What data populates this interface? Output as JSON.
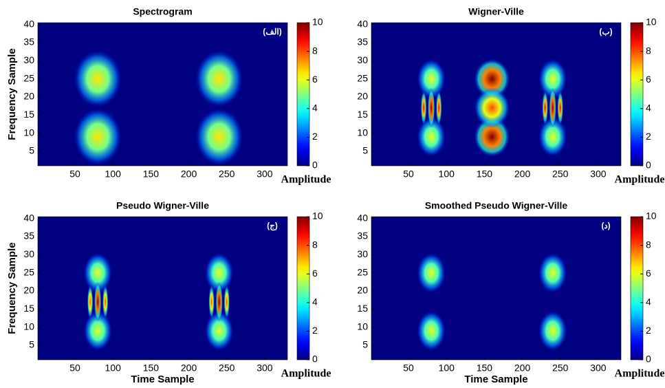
{
  "chart_data": [
    {
      "type": "heatmap",
      "title": "Spectrogram",
      "panel_label": "(الف)",
      "ylabel": "Frequency Sample",
      "colorbar_label": "Amplitude",
      "xlim": [
        1,
        330
      ],
      "xticks": [
        50,
        100,
        150,
        200,
        250,
        300
      ],
      "ylim": [
        1,
        40.5
      ],
      "yticks": [
        5,
        10,
        15,
        20,
        25,
        30,
        35,
        40
      ],
      "clim": [
        0,
        10
      ],
      "cticks": [
        0,
        2,
        4,
        6,
        8,
        10
      ],
      "blobs": [
        {
          "x": 80,
          "y": 25,
          "value": 6.5,
          "width": 40,
          "height": 10
        },
        {
          "x": 240,
          "y": 25,
          "value": 6.5,
          "width": 40,
          "height": 10
        },
        {
          "x": 80,
          "y": 9,
          "value": 6.5,
          "width": 40,
          "height": 10
        },
        {
          "x": 240,
          "y": 9,
          "value": 6.5,
          "width": 40,
          "height": 10
        }
      ]
    },
    {
      "type": "heatmap",
      "title": "Wigner-Ville",
      "panel_label": "(ب)",
      "colorbar_label": "Amplitude",
      "xlim": [
        1,
        330
      ],
      "xticks": [
        50,
        100,
        150,
        200,
        250,
        300
      ],
      "ylim": [
        1,
        40.5
      ],
      "yticks": [
        5,
        10,
        15,
        20,
        25,
        30,
        35,
        40
      ],
      "clim": [
        0,
        10
      ],
      "cticks": [
        0,
        2,
        4,
        6,
        8,
        10
      ],
      "blobs": [
        {
          "x": 80,
          "y": 25,
          "value": 6,
          "width": 24,
          "height": 7
        },
        {
          "x": 240,
          "y": 25,
          "value": 6,
          "width": 24,
          "height": 7
        },
        {
          "x": 80,
          "y": 9,
          "value": 6,
          "width": 24,
          "height": 7
        },
        {
          "x": 240,
          "y": 9,
          "value": 6,
          "width": 24,
          "height": 7
        },
        {
          "x": 80,
          "y": 17,
          "value": 10,
          "width": 6,
          "height": 7
        },
        {
          "x": 70,
          "y": 17,
          "value": 9,
          "width": 5,
          "height": 6
        },
        {
          "x": 90,
          "y": 17,
          "value": 9,
          "width": 5,
          "height": 6
        },
        {
          "x": 240,
          "y": 17,
          "value": 10,
          "width": 6,
          "height": 7
        },
        {
          "x": 230,
          "y": 17,
          "value": 9,
          "width": 5,
          "height": 6
        },
        {
          "x": 250,
          "y": 17,
          "value": 9,
          "width": 5,
          "height": 6
        },
        {
          "x": 160,
          "y": 25,
          "value": 10,
          "width": 30,
          "height": 7
        },
        {
          "x": 160,
          "y": 9,
          "value": 10,
          "width": 30,
          "height": 7
        },
        {
          "x": 160,
          "y": 17,
          "value": 8,
          "width": 30,
          "height": 7
        }
      ]
    },
    {
      "type": "heatmap",
      "title": "Pseudo Wigner-Ville",
      "panel_label": "(ج)",
      "ylabel": "Frequency Sample",
      "xlabel": "Time Sample",
      "colorbar_label": "Amplitude",
      "xlim": [
        1,
        330
      ],
      "xticks": [
        50,
        100,
        150,
        200,
        250,
        300
      ],
      "ylim": [
        1,
        40.5
      ],
      "yticks": [
        5,
        10,
        15,
        20,
        25,
        30,
        35,
        40
      ],
      "clim": [
        0,
        10
      ],
      "cticks": [
        0,
        2,
        4,
        6,
        8,
        10
      ],
      "blobs": [
        {
          "x": 80,
          "y": 25,
          "value": 6,
          "width": 24,
          "height": 7
        },
        {
          "x": 240,
          "y": 25,
          "value": 6,
          "width": 24,
          "height": 7
        },
        {
          "x": 80,
          "y": 9,
          "value": 6,
          "width": 24,
          "height": 7
        },
        {
          "x": 240,
          "y": 9,
          "value": 6,
          "width": 24,
          "height": 7
        },
        {
          "x": 80,
          "y": 17,
          "value": 10,
          "width": 6,
          "height": 7
        },
        {
          "x": 70,
          "y": 17,
          "value": 8,
          "width": 5,
          "height": 6
        },
        {
          "x": 90,
          "y": 17,
          "value": 8,
          "width": 5,
          "height": 6
        },
        {
          "x": 240,
          "y": 17,
          "value": 10,
          "width": 6,
          "height": 7
        },
        {
          "x": 230,
          "y": 17,
          "value": 8,
          "width": 5,
          "height": 6
        },
        {
          "x": 250,
          "y": 17,
          "value": 8,
          "width": 5,
          "height": 6
        }
      ]
    },
    {
      "type": "heatmap",
      "title": "Smoothed Pseudo Wigner-Ville",
      "panel_label": "(د)",
      "xlabel": "Time Sample",
      "colorbar_label": "Amplitude",
      "xlim": [
        1,
        330
      ],
      "xticks": [
        50,
        100,
        150,
        200,
        250,
        300
      ],
      "ylim": [
        1,
        40.5
      ],
      "yticks": [
        5,
        10,
        15,
        20,
        25,
        30,
        35,
        40
      ],
      "clim": [
        0,
        10
      ],
      "cticks": [
        0,
        2,
        4,
        6,
        8,
        10
      ],
      "blobs": [
        {
          "x": 80,
          "y": 25,
          "value": 6,
          "width": 24,
          "height": 7
        },
        {
          "x": 240,
          "y": 25,
          "value": 6,
          "width": 24,
          "height": 7
        },
        {
          "x": 80,
          "y": 9,
          "value": 6,
          "width": 24,
          "height": 7
        },
        {
          "x": 240,
          "y": 9,
          "value": 6,
          "width": 24,
          "height": 7
        }
      ]
    }
  ]
}
